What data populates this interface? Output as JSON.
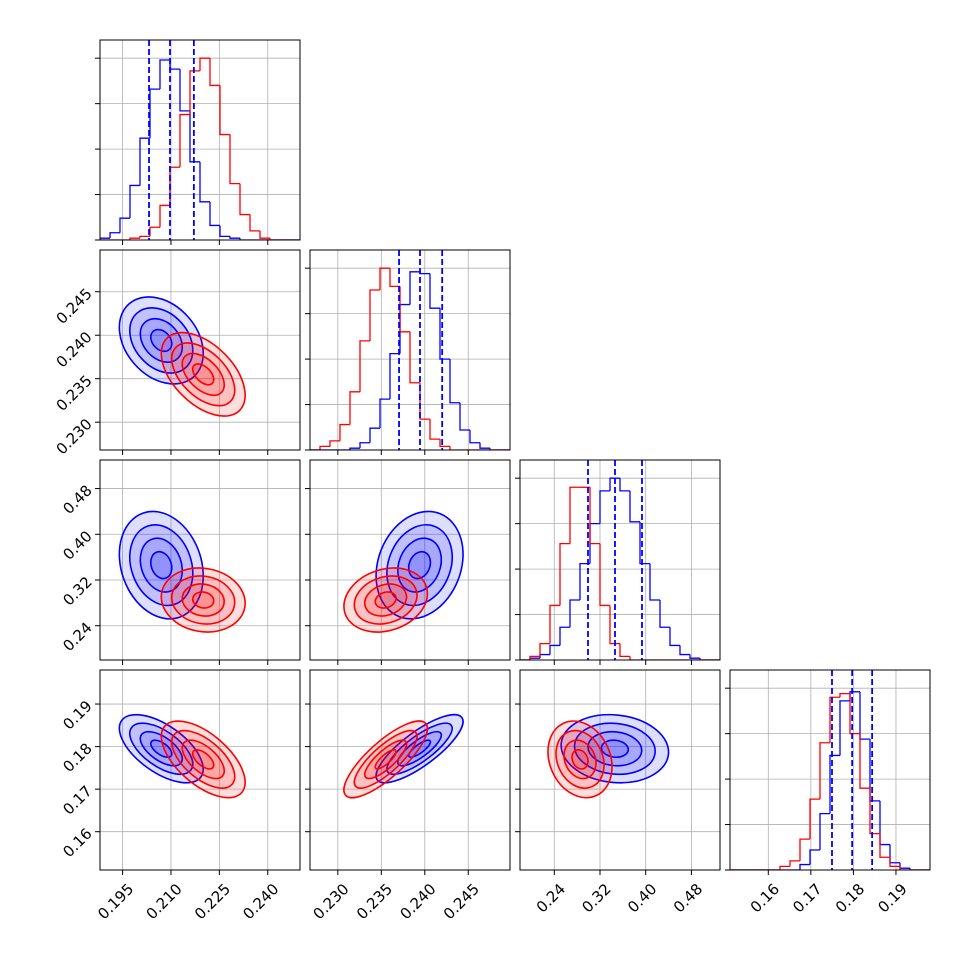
{
  "chart_data": {
    "type": "corner",
    "grid": true,
    "quantile_color": "#0000ff",
    "hist_ylim": [
      0,
      110
    ],
    "hist_yticks": [
      0,
      25,
      50,
      75,
      100
    ],
    "levels": [
      0.5,
      1,
      1.5,
      2
    ],
    "params": [
      {
        "lim": [
          0.188,
          0.25
        ],
        "ticks": [
          0.195,
          {
            "value": 0.21,
            "label": "0.210"
          },
          0.225,
          {
            "value": 0.24,
            "label": "0.240"
          }
        ],
        "quantiles": [
          0.2032,
          0.2097,
          0.2171
        ],
        "bins": [
          0.188,
          0.1911,
          0.1942,
          0.1973,
          0.2004,
          0.2035,
          0.2066,
          0.2097,
          0.2128,
          0.2159,
          0.219,
          0.2221,
          0.2252,
          0.2283,
          0.2314,
          0.2345,
          0.2376,
          0.2407,
          0.2438,
          0.2469,
          0.25
        ]
      },
      {
        "lim": [
          0.2268,
          0.2498
        ],
        "ticks": [
          {
            "value": 0.23,
            "label": "0.230"
          },
          0.235,
          {
            "value": 0.24,
            "label": "0.240"
          },
          0.245
        ],
        "quantiles": [
          0.23704,
          0.23945,
          0.242
        ],
        "bins": [
          0.2268,
          0.22795,
          0.2291,
          0.23025,
          0.2314,
          0.23255,
          0.2337,
          0.23485,
          0.236,
          0.23715,
          0.2383,
          0.23945,
          0.2406,
          0.24175,
          0.2429,
          0.24405,
          0.2452,
          0.24635,
          0.2475,
          0.24865,
          0.2498
        ]
      },
      {
        "lim": [
          0.18,
          0.53
        ],
        "ticks": [
          0.24,
          0.32,
          {
            "value": 0.4,
            "label": "0.40"
          },
          0.48
        ],
        "quantiles": [
          0.299,
          0.34625,
          0.3935
        ],
        "bins": [
          0.18,
          0.1975,
          0.215,
          0.2325,
          0.25,
          0.2675,
          0.285,
          0.3025,
          0.32,
          0.3375,
          0.355,
          0.3725,
          0.39,
          0.4075,
          0.425,
          0.4425,
          0.46,
          0.4775,
          0.495,
          0.5125,
          0.53
        ]
      },
      {
        "lim": [
          0.151,
          0.198
        ],
        "ticks": [
          0.16,
          0.17,
          0.18,
          0.19
        ],
        "quantiles": [
          0.17497,
          0.1797,
          0.1844
        ],
        "bins": [
          0.151,
          0.15335,
          0.1557,
          0.15805,
          0.1604,
          0.16275,
          0.1651,
          0.16745,
          0.1698,
          0.17215,
          0.1745,
          0.17685,
          0.1792,
          0.18155,
          0.1839,
          0.18625,
          0.1886,
          0.19095,
          0.1933,
          0.19565,
          0.198
        ]
      }
    ],
    "series": [
      {
        "color": "#0000ff",
        "means": [
          0.207,
          0.2394,
          0.346,
          0.1795
        ],
        "sds": [
          0.0065,
          0.0025,
          0.047,
          0.004
        ],
        "correlations": [
          [
            1,
            -0.3,
            -0.2,
            -0.6
          ],
          [
            -0.3,
            1,
            0.2,
            0.8
          ],
          [
            -0.2,
            0.2,
            1,
            -0.1
          ],
          [
            -0.6,
            0.8,
            -0.1,
            1
          ]
        ],
        "hists": [
          [
            1,
            4,
            12,
            30,
            56,
            83,
            99,
            94,
            71,
            43,
            21,
            8,
            2,
            1,
            0,
            0,
            0,
            0,
            0,
            0
          ],
          [
            0,
            0,
            0,
            0,
            1,
            4,
            12,
            28,
            53,
            80,
            98,
            97,
            78,
            50,
            26,
            11,
            4,
            1,
            0,
            0
          ],
          [
            0,
            1,
            3,
            8,
            18,
            33,
            53,
            75,
            93,
            100,
            93,
            76,
            53,
            33,
            18,
            8,
            3,
            1,
            0,
            0
          ],
          [
            0,
            0,
            0,
            0,
            0,
            0,
            0,
            3,
            11,
            31,
            63,
            93,
            98,
            72,
            38,
            14,
            4,
            1,
            0,
            0
          ]
        ]
      },
      {
        "color": "#ff0000",
        "means": [
          0.22,
          0.2355,
          0.285,
          0.177
        ],
        "sds": [
          0.0065,
          0.0024,
          0.028,
          0.0045
        ],
        "correlations": [
          [
            1,
            -0.5,
            -0.1,
            -0.6
          ],
          [
            -0.5,
            1,
            0.2,
            0.8
          ],
          [
            -0.1,
            0.2,
            1,
            -0.2
          ],
          [
            -0.6,
            0.8,
            -0.2,
            1
          ]
        ],
        "hists": [
          [
            0,
            0,
            0,
            1,
            2,
            7,
            19,
            40,
            69,
            93,
            100,
            85,
            58,
            31,
            14,
            5,
            1,
            0,
            0,
            0
          ],
          [
            0,
            2,
            5,
            14,
            32,
            60,
            88,
            100,
            90,
            65,
            37,
            17,
            6,
            2,
            0,
            0,
            0,
            0,
            0,
            0
          ],
          [
            0,
            2,
            9,
            30,
            64,
            95,
            95,
            64,
            30,
            9,
            2,
            0,
            0,
            0,
            0,
            0,
            0,
            0,
            0,
            0
          ],
          [
            0,
            0,
            0,
            0,
            0,
            2,
            5,
            17,
            39,
            70,
            95,
            97,
            75,
            45,
            20,
            7,
            2,
            0,
            0,
            0
          ]
        ]
      }
    ]
  }
}
